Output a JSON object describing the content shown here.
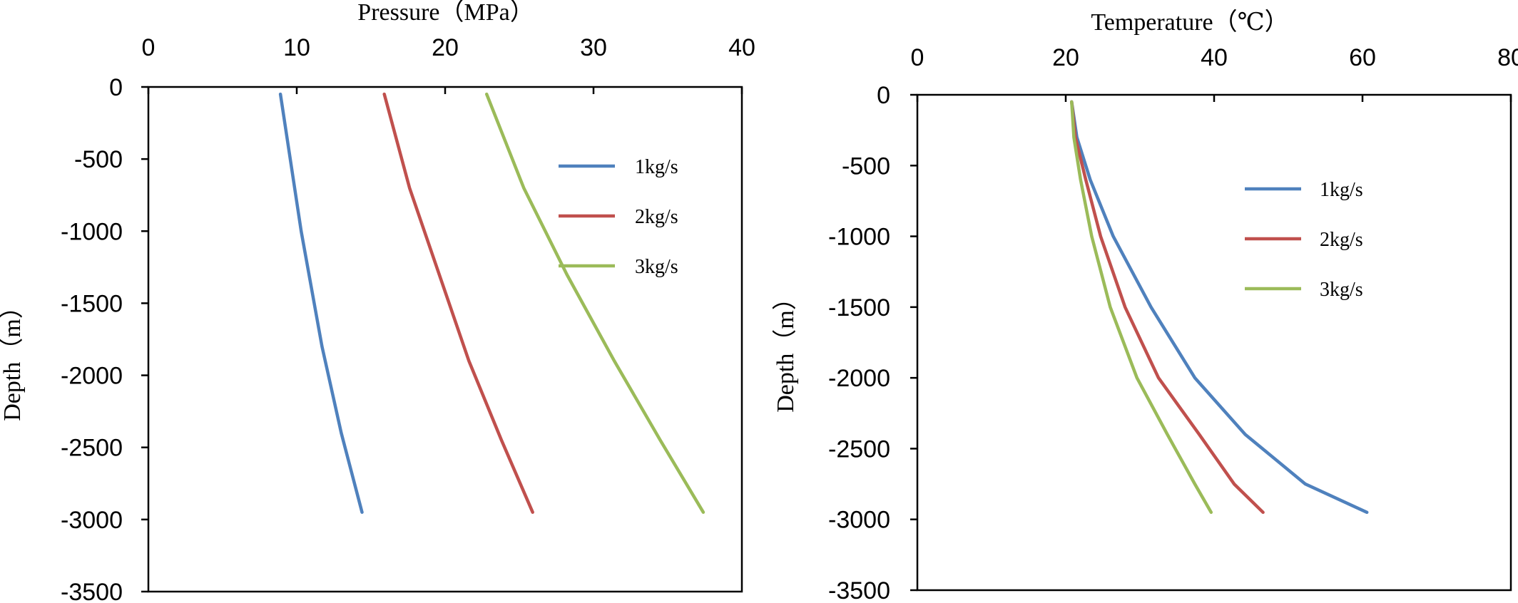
{
  "chart_data": [
    {
      "type": "line",
      "xlabel": "Pressure（MPa）",
      "ylabel": "Depth（m）",
      "xlim": [
        0,
        40
      ],
      "ylim": [
        -3500,
        0
      ],
      "x_ticks": [
        "0",
        "10",
        "20",
        "30",
        "40"
      ],
      "y_ticks": [
        "0",
        "-500",
        "-1000",
        "-1500",
        "-2000",
        "-2500",
        "-3000",
        "-3500"
      ],
      "x_axis_position": "top",
      "grid": false,
      "legend_position": "right",
      "series": [
        {
          "name": "1kg/s",
          "color": "#4f81bd",
          "points": [
            [
              8.9,
              -50
            ],
            [
              10.3,
              -1000
            ],
            [
              11.7,
              -1800
            ],
            [
              13.0,
              -2400
            ],
            [
              14.4,
              -2950
            ]
          ]
        },
        {
          "name": "2kg/s",
          "color": "#c0504d",
          "points": [
            [
              15.9,
              -50
            ],
            [
              17.6,
              -700
            ],
            [
              19.6,
              -1300
            ],
            [
              21.6,
              -1900
            ],
            [
              23.8,
              -2450
            ],
            [
              25.9,
              -2950
            ]
          ]
        },
        {
          "name": "3kg/s",
          "color": "#9bbb59",
          "points": [
            [
              22.8,
              -50
            ],
            [
              25.3,
              -700
            ],
            [
              28.2,
              -1300
            ],
            [
              31.4,
              -1900
            ],
            [
              34.5,
              -2450
            ],
            [
              37.4,
              -2950
            ]
          ]
        }
      ]
    },
    {
      "type": "line",
      "xlabel": "Temperature（℃）",
      "ylabel": "Depth（m）",
      "xlim": [
        0,
        80
      ],
      "ylim": [
        -3500,
        0
      ],
      "x_ticks": [
        "0",
        "20",
        "40",
        "60",
        "80"
      ],
      "y_ticks": [
        "0",
        "-500",
        "-1000",
        "-1500",
        "-2000",
        "-2500",
        "-3000",
        "-3500"
      ],
      "x_axis_position": "top",
      "grid": false,
      "legend_position": "right",
      "series": [
        {
          "name": "1kg/s",
          "color": "#4f81bd",
          "points": [
            [
              20.8,
              -50
            ],
            [
              21.5,
              -300
            ],
            [
              23.3,
              -600
            ],
            [
              26.4,
              -1000
            ],
            [
              31.5,
              -1500
            ],
            [
              37.4,
              -2000
            ],
            [
              44.2,
              -2400
            ],
            [
              52.3,
              -2750
            ],
            [
              60.6,
              -2950
            ]
          ]
        },
        {
          "name": "2kg/s",
          "color": "#c0504d",
          "points": [
            [
              20.8,
              -50
            ],
            [
              21.3,
              -300
            ],
            [
              22.7,
              -600
            ],
            [
              24.7,
              -1000
            ],
            [
              28.0,
              -1500
            ],
            [
              32.5,
              -2000
            ],
            [
              38.0,
              -2400
            ],
            [
              42.7,
              -2750
            ],
            [
              46.6,
              -2950
            ]
          ]
        },
        {
          "name": "3kg/s",
          "color": "#9bbb59",
          "points": [
            [
              20.8,
              -50
            ],
            [
              21.1,
              -300
            ],
            [
              22.0,
              -600
            ],
            [
              23.5,
              -1000
            ],
            [
              26.0,
              -1500
            ],
            [
              29.6,
              -2000
            ],
            [
              33.7,
              -2400
            ],
            [
              37.4,
              -2750
            ],
            [
              39.6,
              -2950
            ]
          ]
        }
      ]
    }
  ]
}
